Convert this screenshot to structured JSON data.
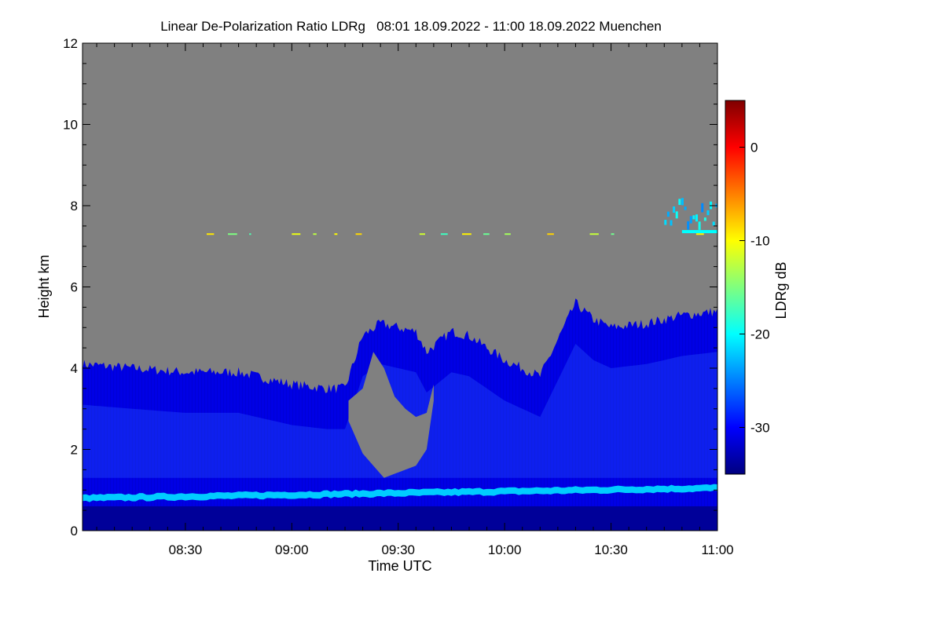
{
  "chart_data": {
    "type": "heatmap",
    "title": "Linear De-Polarization Ratio LDRg   08:01 18.09.2022 - 11:00 18.09.2022 Muenchen",
    "xlabel": "Time UTC",
    "ylabel": "Height km",
    "colorbar_label": "LDRg dB",
    "x_ticks": [
      "08:30",
      "09:00",
      "09:30",
      "10:00",
      "10:30",
      "11:00"
    ],
    "x_tick_minutes": [
      510,
      540,
      570,
      600,
      630,
      660
    ],
    "xlim_minutes": [
      481,
      660
    ],
    "y_ticks": [
      0,
      2,
      4,
      6,
      8,
      10,
      12
    ],
    "ylim_km": [
      0,
      12
    ],
    "colorbar_ticks": [
      0,
      -10,
      -20,
      -30
    ],
    "colorbar_range_db": [
      -35,
      5
    ],
    "no_data_color": "#808080",
    "colormap": [
      "#00007f",
      "#0000ff",
      "#007fff",
      "#00ffff",
      "#7fff7f",
      "#ffff00",
      "#ff7f00",
      "#ff0000",
      "#7f0000"
    ],
    "features": {
      "boundary_layer_band": {
        "height_km_start": 0.8,
        "height_km_end": 1.05,
        "ldr_db": -22
      },
      "aerosol_layer": {
        "top_km_start": 3.8,
        "top_km_end": 5.4,
        "ldr_db": -31
      },
      "cirrus_streak": {
        "height_km": 7.3,
        "ldr_db": -13
      },
      "upper_cloud": {
        "height_km_start": 7.6,
        "height_km_end": 8.2,
        "ldr_db": -22
      }
    },
    "cloud_top_profile": {
      "time_minutes": [
        481,
        495,
        510,
        525,
        540,
        550,
        555,
        560,
        565,
        570,
        575,
        578,
        585,
        590,
        600,
        610,
        620,
        625,
        630,
        640,
        650,
        660
      ],
      "top_km": [
        4.1,
        4.0,
        3.9,
        3.9,
        3.6,
        3.5,
        3.5,
        4.8,
        5.1,
        5.0,
        4.9,
        4.4,
        4.9,
        4.8,
        4.2,
        3.8,
        5.6,
        5.2,
        5.0,
        5.1,
        5.3,
        5.4
      ]
    },
    "gap_profile": {
      "time_minutes": [
        556,
        560,
        563,
        566,
        569,
        572,
        575,
        578,
        580
      ],
      "bottom_km": [
        2.7,
        1.9,
        1.6,
        1.3,
        1.4,
        1.5,
        1.6,
        2.0,
        3.2
      ],
      "top_km": [
        3.2,
        3.5,
        4.4,
        4.0,
        3.3,
        3.0,
        2.8,
        2.9,
        3.6
      ]
    }
  }
}
